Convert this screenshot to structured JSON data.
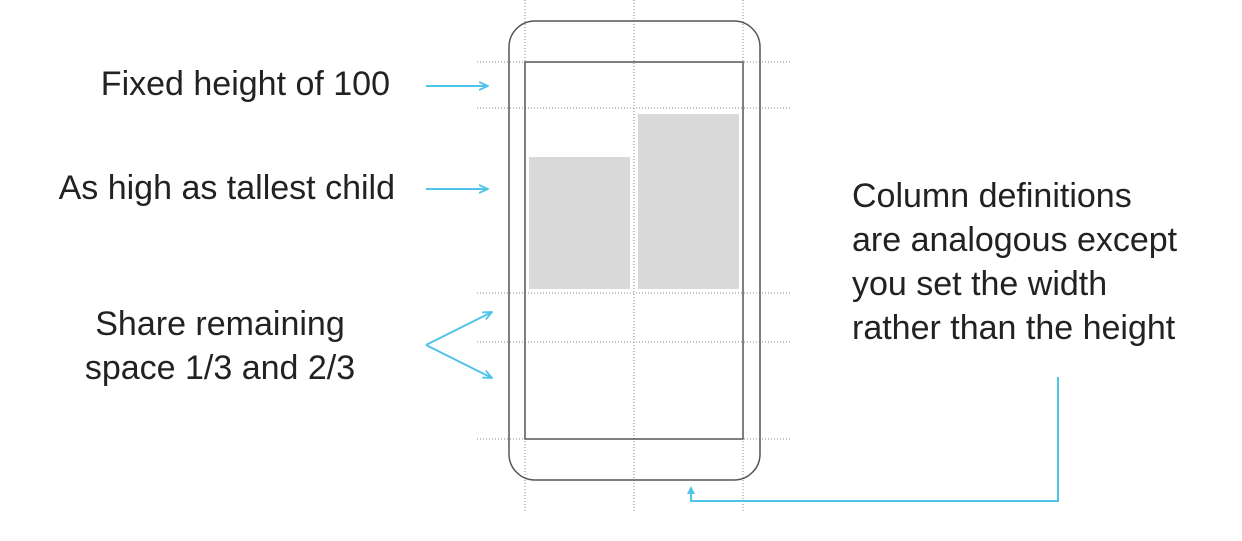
{
  "labels": {
    "fixed_height": "Fixed height of 100",
    "tallest_child": "As high as tallest child",
    "share_remaining": [
      "Share remaining",
      "space 1/3 and 2/3"
    ],
    "column_definitions": [
      "Column definitions",
      "are analogous except",
      "you set the width",
      "rather than the height"
    ]
  },
  "colors": {
    "arrow": "#4fc3e8",
    "device_outline": "#555555",
    "grid_line": "#888888",
    "child_fill": "#d9d9d9",
    "text": "#222222"
  }
}
